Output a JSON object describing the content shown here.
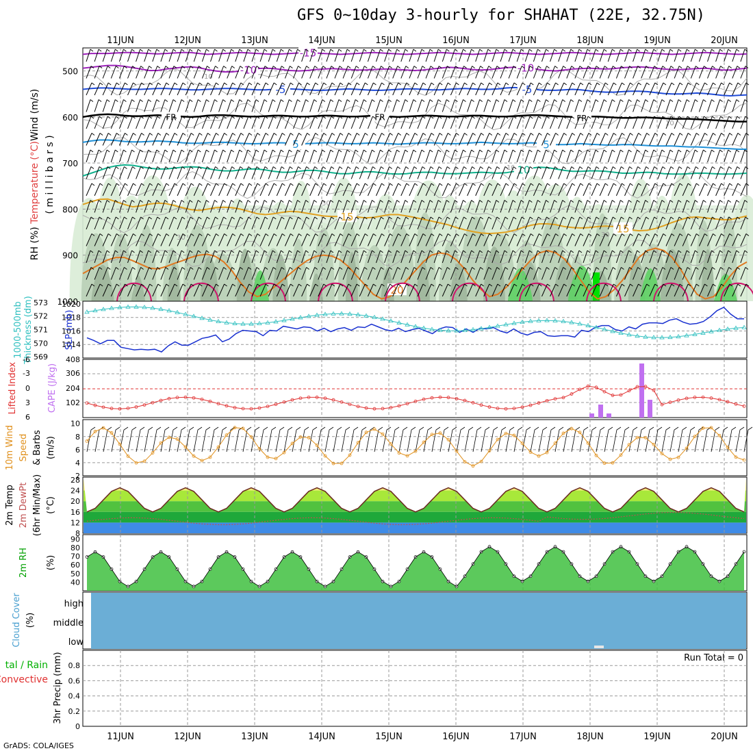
{
  "title": "GFS 0~10day 3-hourly for SHAHAT (22E, 32.75N)",
  "credit": "GrADS: COLA/IGES",
  "dates": [
    "11JUN",
    "12JUN",
    "13JUN",
    "14JUN",
    "15JUN",
    "16JUN",
    "17JUN",
    "18JUN",
    "19JUN",
    "20JUN"
  ],
  "colors": {
    "rh_light": "#d9ecd6",
    "rh_mid": "#b9cfb7",
    "rh_dark": "#9fb69c",
    "rh_green": "#5fd165",
    "rh_bright": "#00e000",
    "temp_m15": "#9b22b8",
    "temp_m10": "#9b22b8",
    "temp_m5": "#1f4bd8",
    "temp_fr": "#000000",
    "temp_5": "#1e90d8",
    "temp_10": "#10b08c",
    "temp_15": "#e0a020",
    "temp_20": "#e07820",
    "temp_25": "#d0106a",
    "slp": "#1830d0",
    "thickness": "#30c0c0",
    "lifted_index": "#e03030",
    "cape": "#c070f0",
    "wind_speed": "#e0901c",
    "dewpoint": "#c05050",
    "cloud": "#6baed6"
  },
  "chart_data": [
    {
      "type": "line",
      "name": "upper-air",
      "ylabel_parts": [
        "RH (%)",
        "Temperature (°C)",
        "Wind (m/s)"
      ],
      "ylabel_units": "( m i l l i b a r s )",
      "yticks": [
        500,
        600,
        700,
        800,
        900,
        1000
      ],
      "ylim": [
        1000,
        450
      ],
      "contour_labels": [
        "-15",
        "-10",
        "-5",
        "FR",
        "5",
        "10",
        "15",
        "20"
      ],
      "rh_labels": [
        "10",
        "30",
        "30",
        "10",
        "10",
        "30"
      ],
      "isotherms": [
        {
          "label": "-15",
          "levels": [
            464,
            462,
            462,
            462,
            461,
            460,
            460,
            461,
            462,
            463,
            462,
            461,
            460,
            460,
            462,
            464,
            463,
            462,
            461,
            460,
            461,
            462,
            463,
            464,
            463,
            462,
            461,
            460,
            461,
            462,
            463,
            464,
            463,
            462,
            461,
            460,
            461,
            462,
            463,
            464,
            463,
            462,
            461,
            460,
            461,
            462,
            463,
            464,
            463,
            462,
            461,
            460,
            461,
            462,
            463,
            464,
            463,
            462,
            461,
            460,
            461,
            462,
            463,
            464,
            463,
            462,
            461,
            460,
            461,
            462,
            463,
            464,
            463,
            462,
            461,
            460,
            461,
            462,
            463,
            464,
            463
          ]
        },
        {
          "label": "-10",
          "levels": [
            494,
            492,
            490,
            488,
            488,
            490,
            493,
            496,
            499,
            499,
            496,
            494,
            492,
            491,
            493,
            497,
            500,
            502,
            502,
            500,
            497,
            495,
            494,
            495,
            497,
            499,
            500,
            499,
            497,
            496,
            495,
            496,
            497,
            498,
            498,
            497,
            496,
            496,
            497,
            498,
            499,
            498,
            496,
            494,
            492,
            493,
            495,
            497,
            498,
            497,
            495,
            493,
            492,
            492,
            494,
            497,
            499,
            500,
            498,
            496,
            495,
            494,
            495,
            496,
            495,
            493,
            492,
            491,
            492,
            494,
            496,
            497,
            497,
            496,
            495,
            494,
            496,
            498,
            498,
            496,
            494
          ]
        },
        {
          "label": "-5",
          "levels": [
            540,
            538,
            537,
            537,
            538,
            539,
            540,
            540,
            539,
            538,
            538,
            539,
            540,
            541,
            541,
            540,
            539,
            538,
            538,
            539,
            540,
            541,
            541,
            540,
            539,
            539,
            540,
            541,
            542,
            542,
            541,
            540,
            539,
            540,
            541,
            542,
            542,
            541,
            540,
            539,
            539,
            540,
            541,
            541,
            540,
            539,
            538,
            539,
            540,
            540,
            539,
            537,
            536,
            537,
            539,
            541,
            542,
            542,
            541,
            540,
            541,
            543,
            545,
            546,
            546,
            545,
            544,
            544,
            545,
            547,
            549,
            550,
            550,
            549,
            548,
            549,
            551,
            553,
            554,
            553,
            552
          ]
        },
        {
          "label": "FR",
          "levels": [
            600,
            597,
            595,
            594,
            595,
            597,
            598,
            598,
            597,
            596,
            597,
            598,
            599,
            600,
            599,
            597,
            596,
            596,
            597,
            598,
            599,
            599,
            598,
            597,
            597,
            598,
            599,
            599,
            598,
            597,
            597,
            598,
            599,
            599,
            598,
            597,
            598,
            599,
            600,
            599,
            598,
            597,
            597,
            598,
            599,
            599,
            598,
            597,
            597,
            598,
            599,
            599,
            598,
            597,
            596,
            596,
            597,
            598,
            599,
            600,
            600,
            599,
            599,
            600,
            601,
            602,
            602,
            601,
            601,
            602,
            603,
            604,
            604,
            604,
            605,
            606,
            607,
            608,
            609,
            610,
            610
          ]
        },
        {
          "label": "5",
          "levels": [
            655,
            652,
            650,
            650,
            651,
            653,
            654,
            654,
            653,
            652,
            653,
            654,
            656,
            657,
            657,
            656,
            655,
            655,
            656,
            657,
            658,
            658,
            657,
            656,
            656,
            657,
            658,
            658,
            657,
            656,
            656,
            657,
            658,
            658,
            657,
            656,
            657,
            658,
            659,
            658,
            657,
            656,
            656,
            657,
            658,
            658,
            657,
            656,
            655,
            656,
            657,
            658,
            658,
            657,
            656,
            657,
            659,
            660,
            660,
            659,
            658,
            659,
            660,
            661,
            661,
            660,
            660,
            661,
            662,
            663,
            663,
            663,
            664,
            665,
            665,
            666,
            667,
            668,
            669,
            670,
            670
          ]
        },
        {
          "label": "10",
          "levels": [
            728,
            722,
            716,
            710,
            706,
            704,
            705,
            708,
            711,
            713,
            713,
            711,
            709,
            708,
            709,
            712,
            715,
            717,
            717,
            715,
            713,
            713,
            715,
            718,
            720,
            720,
            718,
            716,
            716,
            718,
            721,
            723,
            723,
            721,
            719,
            719,
            721,
            723,
            724,
            723,
            721,
            720,
            720,
            722,
            723,
            723,
            722,
            721,
            720,
            721,
            722,
            721,
            718,
            714,
            711,
            709,
            710,
            713,
            716,
            718,
            718,
            717,
            717,
            718,
            720,
            722,
            722,
            721,
            720,
            721,
            723,
            724,
            724,
            723,
            722,
            722,
            723,
            724,
            724,
            723,
            722
          ]
        },
        {
          "label": "15",
          "levels": [
            790,
            784,
            779,
            778,
            784,
            790,
            795,
            793,
            789,
            787,
            788,
            792,
            797,
            801,
            803,
            800,
            797,
            796,
            797,
            800,
            805,
            810,
            812,
            810,
            807,
            805,
            806,
            809,
            812,
            815,
            816,
            816,
            816,
            817,
            819,
            818,
            815,
            812,
            812,
            815,
            818,
            822,
            826,
            830,
            834,
            840,
            845,
            849,
            852,
            853,
            852,
            850,
            846,
            840,
            835,
            832,
            832,
            834,
            838,
            840,
            841,
            840,
            838,
            837,
            838,
            842,
            845,
            847,
            846,
            842,
            836,
            829,
            823,
            818,
            817,
            819,
            821,
            823,
            823,
            819,
            815
          ]
        },
        {
          "label": "20",
          "levels": [
            940,
            930,
            920,
            910,
            905,
            905,
            912,
            920,
            928,
            930,
            925,
            918,
            912,
            905,
            900,
            898,
            903,
            915,
            935,
            960,
            980,
            990,
            985,
            970,
            955,
            940,
            925,
            912,
            903,
            900,
            902,
            910,
            925,
            945,
            965,
            985,
            995,
            990,
            975,
            955,
            935,
            915,
            900,
            895,
            898,
            910,
            930,
            955,
            975,
            990,
            985,
            970,
            950,
            930,
            910,
            895,
            890,
            895,
            908,
            930,
            955,
            980,
            995,
            990,
            975,
            955,
            930,
            905,
            890,
            885,
            890,
            905,
            930,
            960,
            985,
            995,
            990,
            970,
            945,
            925,
            915
          ]
        }
      ]
    },
    {
      "type": "line",
      "name": "slp-thickness",
      "ylabel_left": "1000-500mb Thickness (dm)",
      "ylabel_right": "SLP (mb)",
      "thickness_ticks": [
        569,
        570,
        571,
        572,
        573
      ],
      "slp_ticks": [
        1014,
        1016,
        1018,
        1020
      ],
      "slp_series": [
        1015.0,
        1014.6,
        1014.1,
        1014.6,
        1014.6,
        1013.6,
        1013.4,
        1013.2,
        1013.3,
        1013.2,
        1013.3,
        1012.9,
        1013.8,
        1014.4,
        1013.9,
        1013.9,
        1014.4,
        1014.9,
        1015.1,
        1015.4,
        1014.4,
        1014.8,
        1015.6,
        1016.1,
        1016.0,
        1015.9,
        1015.3,
        1016.1,
        1016.0,
        1016.7,
        1016.5,
        1016.3,
        1016.6,
        1016.5,
        1016.0,
        1016.4,
        1015.9,
        1016.3,
        1016.5,
        1016.1,
        1016.6,
        1016.5,
        1017.0,
        1016.6,
        1016.2,
        1016.0,
        1016.4,
        1015.9,
        1016.2,
        1016.4,
        1016.0,
        1015.6,
        1016.3,
        1016.6,
        1016.5,
        1015.8,
        1016.3,
        1015.8,
        1016.4,
        1016.3,
        1016.5,
        1016.0,
        1015.7,
        1016.3,
        1015.7,
        1015.4,
        1015.8,
        1015.9,
        1015.3,
        1015.2,
        1015.3,
        1015.3,
        1015.1,
        1016.1,
        1015.9,
        1016.5,
        1016.8,
        1016.8,
        1016.2,
        1016.0,
        1016.6,
        1016.3,
        1017.0,
        1017.2,
        1017.2,
        1017.1,
        1017.6,
        1017.8,
        1017.3,
        1017.0,
        1017.1,
        1017.4,
        1018.1,
        1019.0,
        1019.5,
        1018.5,
        1017.8,
        1017.8
      ]
    }
  ]
}
